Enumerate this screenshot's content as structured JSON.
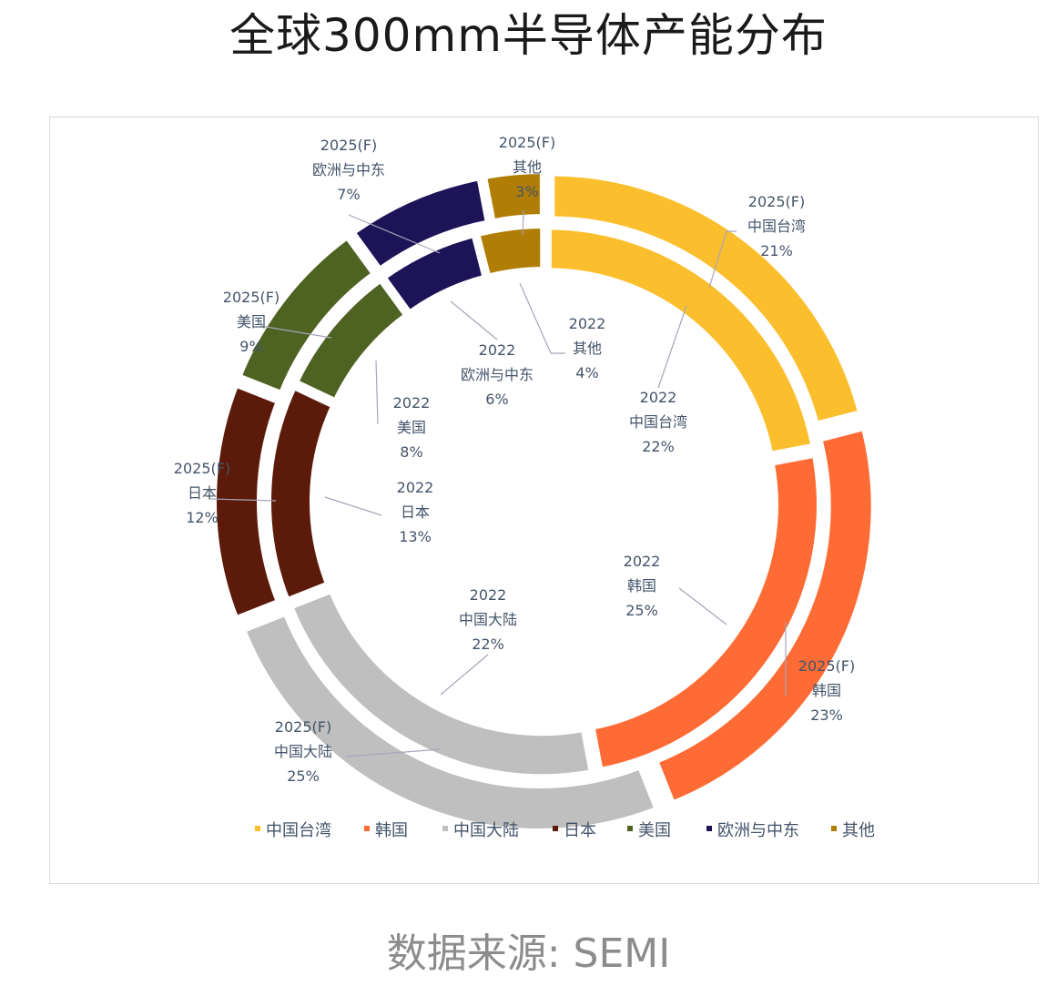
{
  "title": "全球300mm半导体产能分布",
  "source": "数据来源: SEMI",
  "chart_data": {
    "type": "donut",
    "legend_position": "bottom",
    "categories": [
      "中国台湾",
      "韩国",
      "中国大陆",
      "日本",
      "美国",
      "欧洲与中东",
      "其他"
    ],
    "colors": [
      "#FBBF2D",
      "#FF6B35",
      "#BFBFBF",
      "#5C1B0A",
      "#4E6221",
      "#1D1357",
      "#B07D05"
    ],
    "series": [
      {
        "name": "2022",
        "values": [
          22,
          25,
          22,
          13,
          8,
          6,
          4
        ]
      },
      {
        "name": "2025(F)",
        "values": [
          21,
          23,
          25,
          12,
          9,
          7,
          3
        ]
      }
    ]
  }
}
